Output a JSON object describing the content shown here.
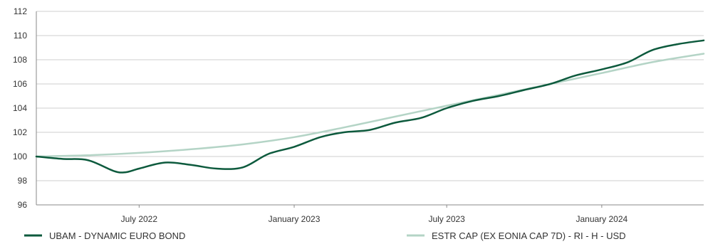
{
  "chart_data": {
    "type": "line",
    "title": "",
    "xlabel": "",
    "ylabel": "",
    "xlim": [
      "2022-03-01",
      "2024-05-01"
    ],
    "ylim": [
      96,
      112
    ],
    "y_ticks": [
      96,
      98,
      100,
      102,
      104,
      106,
      108,
      110,
      112
    ],
    "x_ticks": [
      {
        "date": "2022-07-01",
        "label": "July 2022"
      },
      {
        "date": "2023-01-01",
        "label": "January 2023"
      },
      {
        "date": "2023-07-01",
        "label": "July 2023"
      },
      {
        "date": "2024-01-01",
        "label": "January 2024"
      }
    ],
    "grid": "horizontal",
    "legend_position": "bottom",
    "colors": {
      "grid": "#cfcfcf",
      "axis": "#8a8a8a",
      "text": "#333333"
    },
    "series": [
      {
        "name": "UBAM - DYNAMIC EURO BOND",
        "color": "#0d5a3d",
        "x": [
          "2022-03-01",
          "2022-04-01",
          "2022-05-01",
          "2022-06-01",
          "2022-06-15",
          "2022-07-01",
          "2022-08-01",
          "2022-09-01",
          "2022-10-01",
          "2022-11-01",
          "2022-12-01",
          "2023-01-01",
          "2023-02-01",
          "2023-03-01",
          "2023-04-01",
          "2023-05-01",
          "2023-06-01",
          "2023-07-01",
          "2023-08-01",
          "2023-09-01",
          "2023-10-01",
          "2023-11-01",
          "2023-12-01",
          "2024-01-01",
          "2024-02-01",
          "2024-03-01",
          "2024-04-01",
          "2024-05-01"
        ],
        "values": [
          100.0,
          99.8,
          99.7,
          98.8,
          98.7,
          99.0,
          99.5,
          99.3,
          99.0,
          99.1,
          100.2,
          100.8,
          101.6,
          102.0,
          102.2,
          102.8,
          103.2,
          104.0,
          104.6,
          105.0,
          105.5,
          106.0,
          106.7,
          107.2,
          107.8,
          108.8,
          109.3,
          109.6
        ]
      },
      {
        "name": "ESTR CAP (EX EONIA CAP 7D) - RI - H  - USD",
        "color": "#b4d4c6",
        "x": [
          "2022-03-01",
          "2022-05-01",
          "2022-07-01",
          "2022-09-01",
          "2022-11-01",
          "2023-01-01",
          "2023-03-01",
          "2023-05-01",
          "2023-07-01",
          "2023-09-01",
          "2023-11-01",
          "2024-01-01",
          "2024-03-01",
          "2024-05-01"
        ],
        "values": [
          100.0,
          100.1,
          100.3,
          100.6,
          101.0,
          101.6,
          102.4,
          103.3,
          104.2,
          105.1,
          106.0,
          106.9,
          107.8,
          108.5
        ]
      }
    ]
  }
}
